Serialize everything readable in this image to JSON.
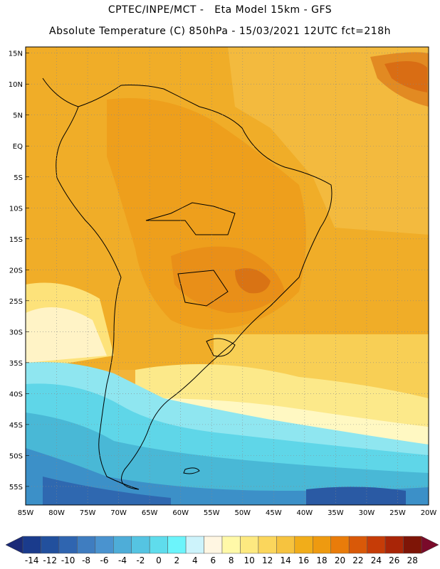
{
  "header": {
    "line1": "CPTEC/INPE/MCT -   Eta Model 15km - GFS",
    "line2": "Absolute Temperature (C) 850hPa - 15/03/2021 12UTC fct=218h"
  },
  "map": {
    "lat_labels": [
      "15N",
      "10N",
      "5N",
      "EQ",
      "5S",
      "10S",
      "15S",
      "20S",
      "25S",
      "30S",
      "35S",
      "40S",
      "45S",
      "50S",
      "55S"
    ],
    "lon_labels": [
      "85W",
      "80W",
      "75W",
      "70W",
      "65W",
      "60W",
      "55W",
      "50W",
      "45W",
      "40W",
      "35W",
      "30W",
      "25W",
      "20W"
    ],
    "lat_range": [
      16,
      -58
    ],
    "lon_range": [
      -85,
      -20
    ],
    "gridlines": "dotted"
  },
  "colorbar": {
    "labels": [
      "-14",
      "-12",
      "-10",
      "-8",
      "-6",
      "-4",
      "-2",
      "0",
      "2",
      "4",
      "6",
      "8",
      "10",
      "12",
      "14",
      "16",
      "18",
      "20",
      "22",
      "24",
      "26",
      "28"
    ],
    "colors": [
      "#1a3b8c",
      "#22509d",
      "#2f65b0",
      "#3f7dc0",
      "#4a93cf",
      "#4eadd8",
      "#55c4e2",
      "#5fdcec",
      "#6cf4fb",
      "#cdf3fb",
      "#fff6e2",
      "#fff9a8",
      "#fde980",
      "#fbd65c",
      "#f6c33f",
      "#f1ad1a",
      "#ee9a10",
      "#e97c0a",
      "#d95908",
      "#c63c07",
      "#a92507",
      "#7e1507"
    ],
    "low_arrow_color": "#1a2a78",
    "high_arrow_color": "#7a0a2a"
  }
}
